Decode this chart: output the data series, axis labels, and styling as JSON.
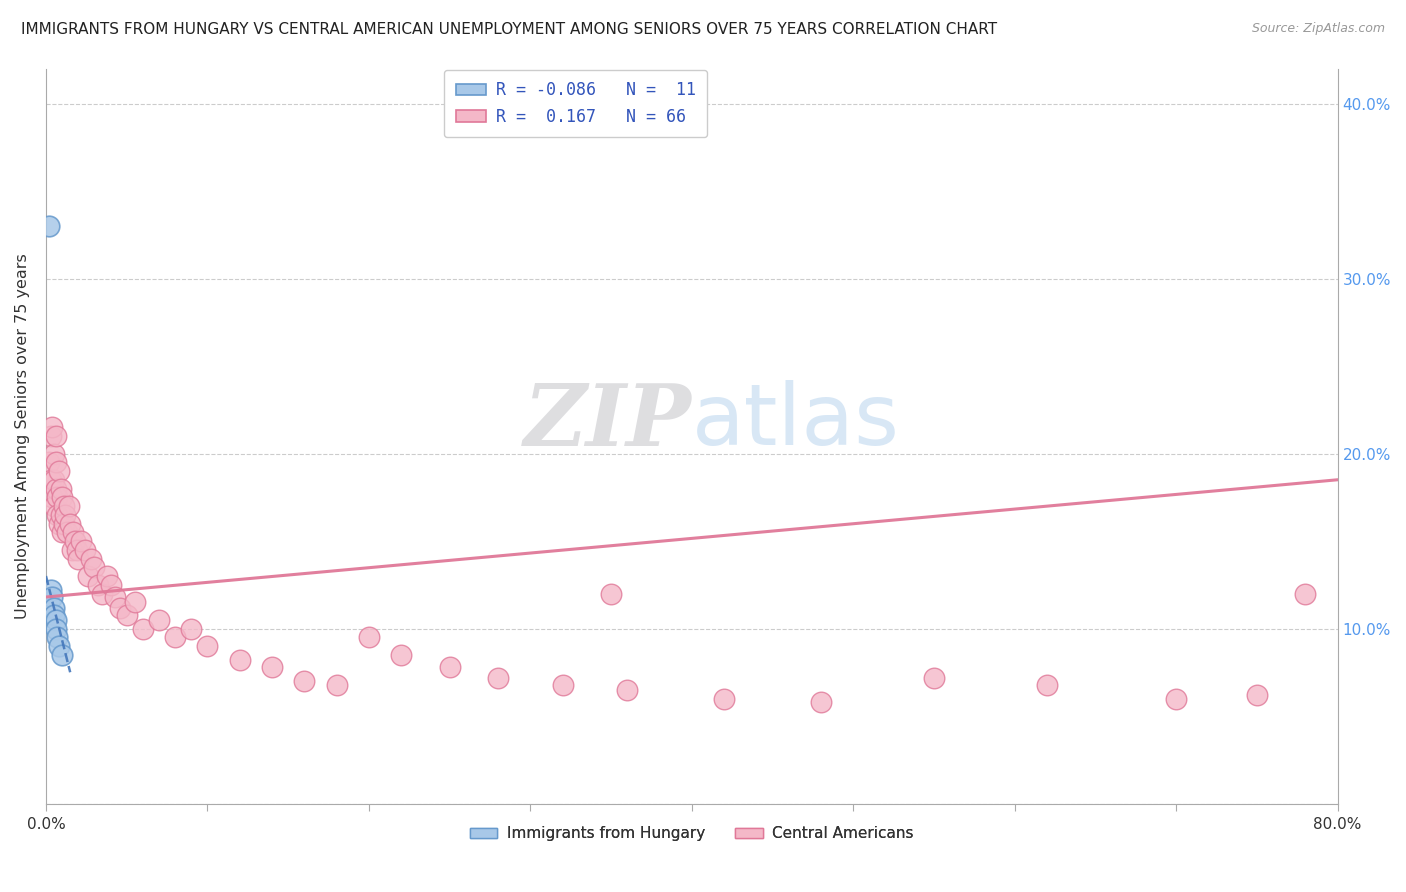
{
  "title": "IMMIGRANTS FROM HUNGARY VS CENTRAL AMERICAN UNEMPLOYMENT AMONG SENIORS OVER 75 YEARS CORRELATION CHART",
  "source": "Source: ZipAtlas.com",
  "ylabel": "Unemployment Among Seniors over 75 years",
  "xlim": [
    0,
    0.8
  ],
  "ylim": [
    0,
    0.42
  ],
  "hungary_color": "#a8c8e8",
  "hungary_edge": "#6699cc",
  "central_color": "#f4b8c8",
  "central_edge": "#e07898",
  "trend_hungary_color": "#4477bb",
  "trend_central_color": "#e07898",
  "watermark_zip": "ZIP",
  "watermark_atlas": "atlas",
  "hungary_x": [
    0.002,
    0.003,
    0.004,
    0.005,
    0.005,
    0.006,
    0.006,
    0.007,
    0.008,
    0.01,
    0.002
  ],
  "hungary_y": [
    0.115,
    0.122,
    0.118,
    0.112,
    0.108,
    0.105,
    0.1,
    0.095,
    0.09,
    0.085,
    0.33
  ],
  "central_x": [
    0.002,
    0.003,
    0.003,
    0.004,
    0.004,
    0.005,
    0.005,
    0.005,
    0.006,
    0.006,
    0.006,
    0.007,
    0.007,
    0.008,
    0.008,
    0.009,
    0.009,
    0.01,
    0.01,
    0.011,
    0.011,
    0.012,
    0.013,
    0.014,
    0.015,
    0.016,
    0.017,
    0.018,
    0.019,
    0.02,
    0.022,
    0.024,
    0.026,
    0.028,
    0.03,
    0.032,
    0.035,
    0.038,
    0.04,
    0.043,
    0.046,
    0.05,
    0.055,
    0.06,
    0.07,
    0.08,
    0.09,
    0.1,
    0.12,
    0.14,
    0.16,
    0.18,
    0.2,
    0.22,
    0.25,
    0.28,
    0.32,
    0.36,
    0.42,
    0.48,
    0.55,
    0.62,
    0.7,
    0.75,
    0.78,
    0.35
  ],
  "central_y": [
    0.195,
    0.21,
    0.185,
    0.215,
    0.175,
    0.2,
    0.185,
    0.17,
    0.195,
    0.21,
    0.18,
    0.175,
    0.165,
    0.19,
    0.16,
    0.18,
    0.165,
    0.175,
    0.155,
    0.17,
    0.16,
    0.165,
    0.155,
    0.17,
    0.16,
    0.145,
    0.155,
    0.15,
    0.145,
    0.14,
    0.15,
    0.145,
    0.13,
    0.14,
    0.135,
    0.125,
    0.12,
    0.13,
    0.125,
    0.118,
    0.112,
    0.108,
    0.115,
    0.1,
    0.105,
    0.095,
    0.1,
    0.09,
    0.082,
    0.078,
    0.07,
    0.068,
    0.095,
    0.085,
    0.078,
    0.072,
    0.068,
    0.065,
    0.06,
    0.058,
    0.072,
    0.068,
    0.06,
    0.062,
    0.12,
    0.12
  ],
  "trend_central_x0": 0.0,
  "trend_central_y0": 0.118,
  "trend_central_x1": 0.8,
  "trend_central_y1": 0.185,
  "trend_hungary_x0": 0.0,
  "trend_hungary_y0": 0.13,
  "trend_hungary_x1": 0.015,
  "trend_hungary_y1": 0.075
}
